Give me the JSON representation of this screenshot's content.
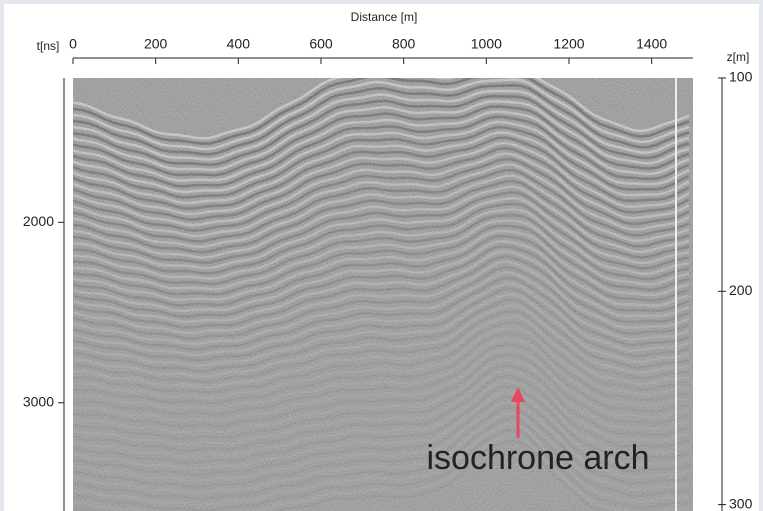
{
  "chart_data": {
    "type": "radargram",
    "x_label": "Distance [m]",
    "y_label": "t[ns]",
    "y2_label": "z[m]",
    "xlim": [
      0,
      1500
    ],
    "xticks": [
      0,
      200,
      400,
      600,
      800,
      1000,
      1200,
      1400
    ],
    "ylim": [
      1200,
      3600
    ],
    "yticks": [
      2000,
      3000
    ],
    "y2lim": [
      100,
      303
    ],
    "y2ticks": [
      100,
      200,
      300
    ],
    "annotation": "isochrone arch",
    "annotation_color": "#e8475f"
  }
}
